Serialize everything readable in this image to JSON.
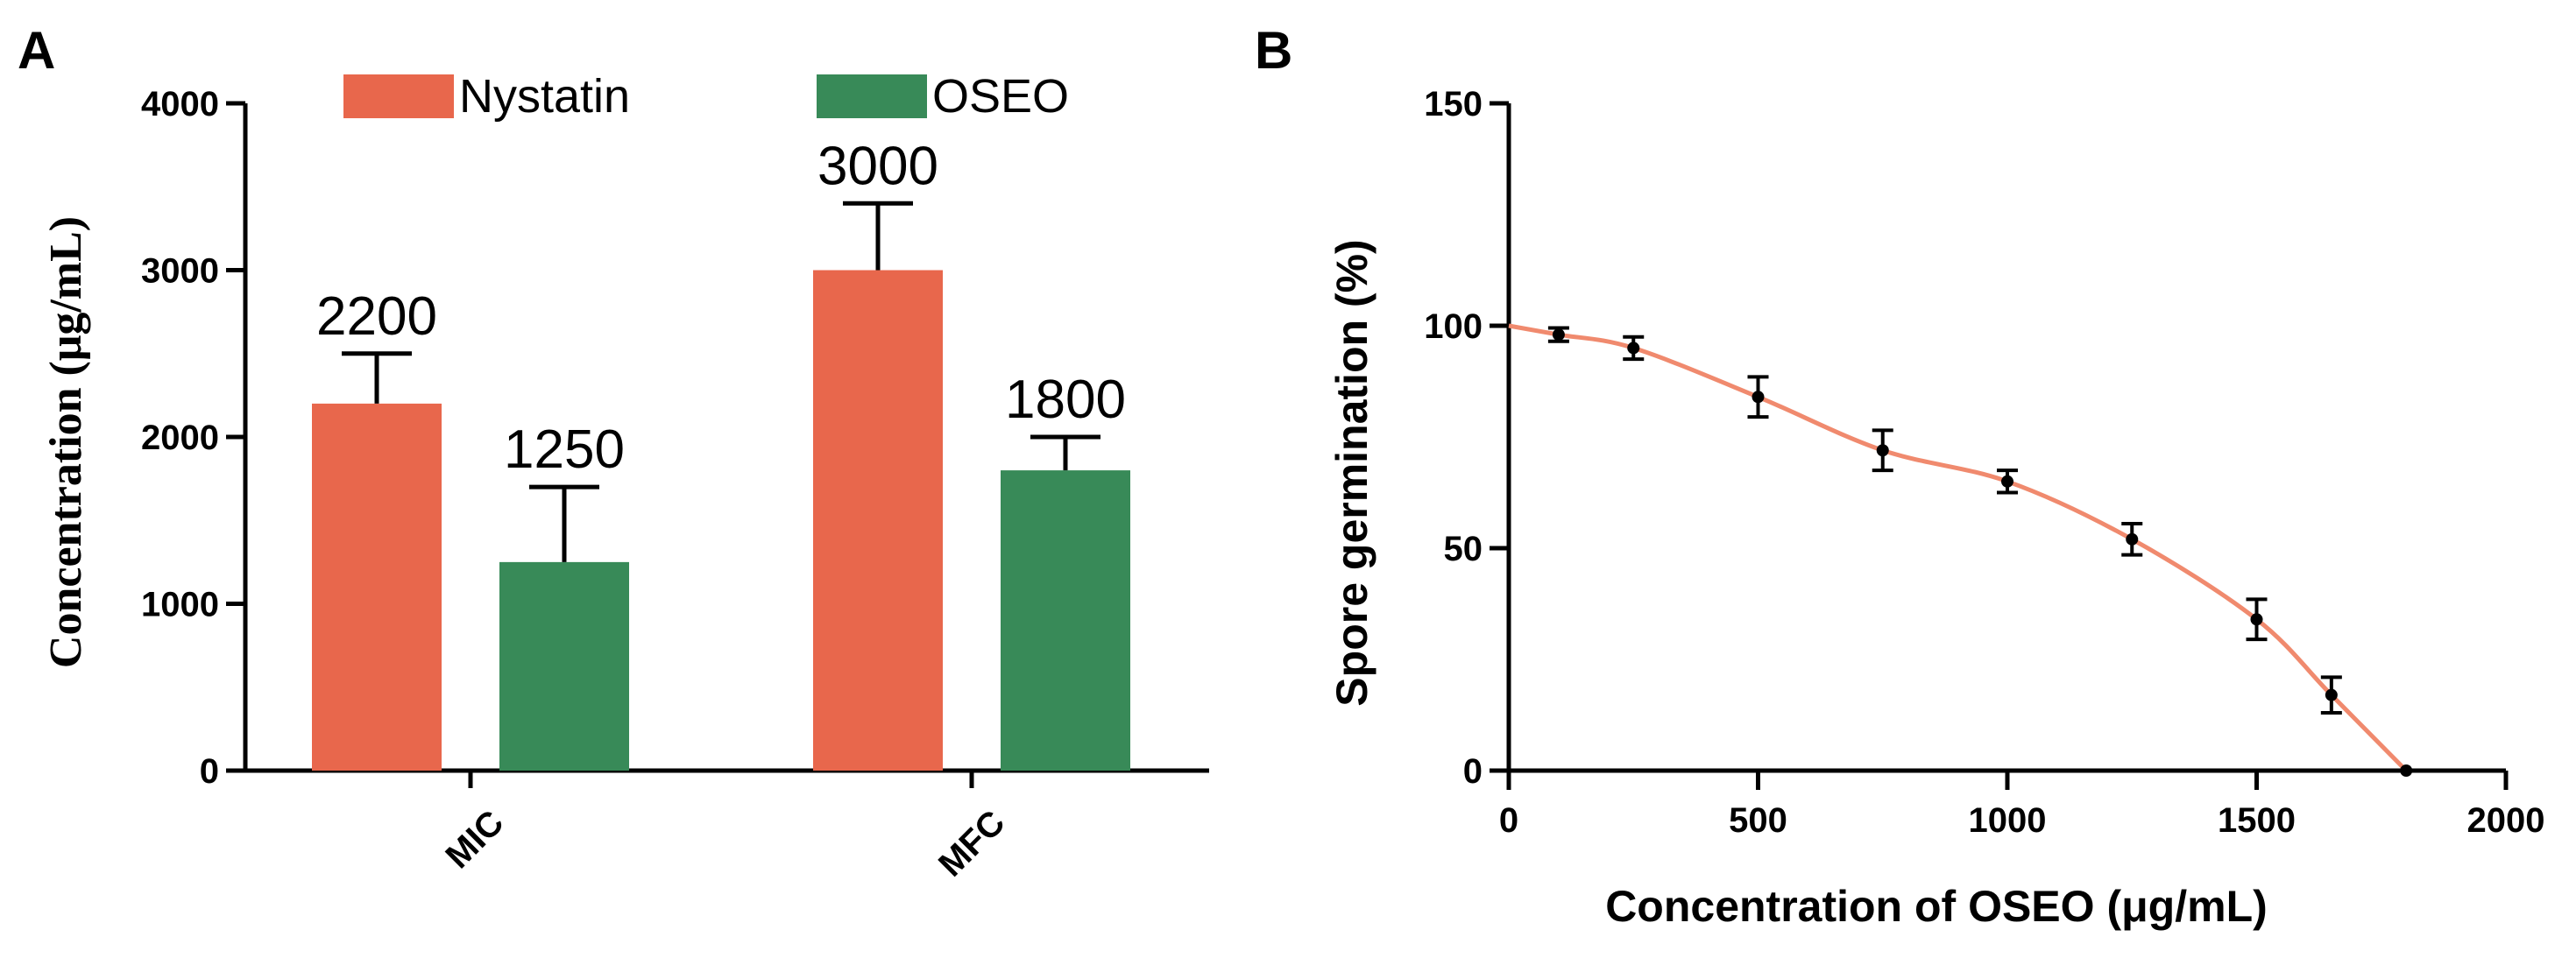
{
  "chart_data": [
    {
      "panel": "A",
      "type": "bar",
      "ylabel": "Concentration (μg/mL)",
      "ylim": [
        0,
        4000
      ],
      "yticks": [
        0,
        1000,
        2000,
        3000,
        4000
      ],
      "yticklabels": [
        "0",
        "1000",
        "2000",
        "3000",
        "4000"
      ],
      "categories": [
        "MIC",
        "MFC"
      ],
      "series": [
        {
          "name": "Nystatin",
          "color": "#e8674c",
          "values": [
            2200,
            3000
          ],
          "error": [
            300,
            400
          ],
          "labels": [
            "2200",
            "3000"
          ]
        },
        {
          "name": "OSEO",
          "color": "#388a58",
          "values": [
            1250,
            1800
          ],
          "error": [
            450,
            200
          ],
          "labels": [
            "1250",
            "1800"
          ]
        }
      ]
    },
    {
      "panel": "B",
      "type": "line",
      "xlabel": "Concentration of OSEO (μg/mL)",
      "ylabel": "Spore germination (%)",
      "xlim": [
        0,
        2000
      ],
      "ylim": [
        0,
        150
      ],
      "xticks": [
        0,
        500,
        1000,
        1500,
        2000
      ],
      "xticklabels": [
        "0",
        "500",
        "1000",
        "1500",
        "2000"
      ],
      "yticks": [
        0,
        50,
        100,
        150
      ],
      "yticklabels": [
        "0",
        "50",
        "100",
        "150"
      ],
      "line_color": "#f08a6e",
      "x": [
        0,
        100,
        250,
        500,
        750,
        1000,
        1250,
        1500,
        1650,
        1800
      ],
      "y": [
        100,
        98,
        95,
        84,
        72,
        65,
        52,
        34,
        17,
        0
      ],
      "error": [
        0,
        1.5,
        2.5,
        4.5,
        4.5,
        2.5,
        3.5,
        4.5,
        4,
        0
      ]
    }
  ]
}
